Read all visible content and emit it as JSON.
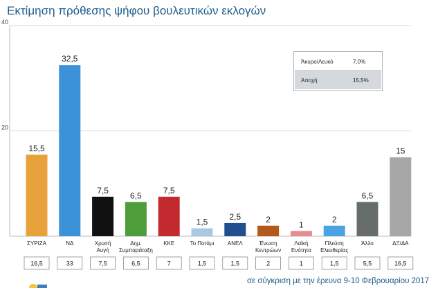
{
  "title": "Εκτίμηση πρόθεσης ψήφου βουλευτικών εκλογών",
  "footer": "σε σύγκριση με την έρευνα 9-10 Φεβρουαρίου 2017",
  "legend": [
    {
      "label": "Άκυρο/Λευκό",
      "value": "7,0%"
    },
    {
      "label": "Αποχή",
      "value": "15,5%"
    }
  ],
  "colors": {
    "accent": "#1f5d8a",
    "grid": "#d9d9d9",
    "axis": "#b9b9b9"
  },
  "chart_data": {
    "type": "bar",
    "ylim": [
      0,
      40
    ],
    "yticks": [
      20,
      40
    ],
    "grid": true,
    "categories": [
      {
        "lines": [
          "ΣΥΡΙΖΑ"
        ]
      },
      {
        "lines": [
          "ΝΔ"
        ]
      },
      {
        "lines": [
          "Χρυσή",
          "Αυγή"
        ]
      },
      {
        "lines": [
          "Δημ.",
          "Συμπαράταξη"
        ]
      },
      {
        "lines": [
          "ΚΚΕ"
        ]
      },
      {
        "lines": [
          "Το Ποτάμι"
        ]
      },
      {
        "lines": [
          "ΑΝΕΛ"
        ]
      },
      {
        "lines": [
          "Ένωση",
          "Κεντρώων"
        ]
      },
      {
        "lines": [
          "Λαϊκή",
          "Ενότητα"
        ]
      },
      {
        "lines": [
          "Πλεύση",
          "Ελευθερίας"
        ]
      },
      {
        "lines": [
          "Άλλο"
        ]
      },
      {
        "lines": [
          "ΔΞ/ΔΑ"
        ]
      }
    ],
    "values": [
      15.5,
      32.5,
      7.5,
      6.5,
      7.5,
      1.5,
      2.5,
      2,
      1,
      2,
      6.5,
      15
    ],
    "value_labels": [
      "15,5",
      "32,5",
      "7,5",
      "6,5",
      "7,5",
      "1,5",
      "2,5",
      "2",
      "1",
      "2",
      "6,5",
      "15"
    ],
    "previous": [
      "16,5",
      "33",
      "7,5",
      "6,5",
      "7",
      "1,5",
      "1,5",
      "2",
      "1",
      "1,5",
      "5,5",
      "16,5"
    ],
    "bar_colors": [
      "#e9a23b",
      "#3b92d9",
      "#111111",
      "#4f9d3a",
      "#c32a2f",
      "#a8c8e6",
      "#1f4f8f",
      "#b35a1a",
      "#e88d8f",
      "#4aa4e3",
      "#666d6b",
      "#a7a7a7"
    ]
  }
}
